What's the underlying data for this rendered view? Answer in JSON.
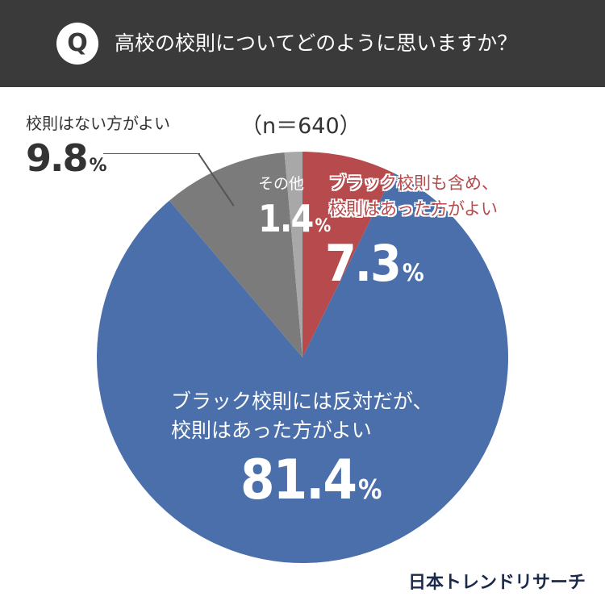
{
  "header": {
    "badge": "Q",
    "title": "高校の校則についてどのように思いますか？"
  },
  "sample_size": "（n＝640）",
  "chart_data": {
    "type": "pie",
    "title": "高校の校則についてどのように思いますか？",
    "slices": [
      {
        "label_line1": "ブラック校則も含め、",
        "label_line2": "校則はあった方がよい",
        "value": 7.3,
        "value_label": "7.3",
        "color": "#b64a4c"
      },
      {
        "label_line1": "ブラック校則には反対だが、",
        "label_line2": "校則はあった方がよい",
        "value": 81.4,
        "value_label": "81.4",
        "color": "#4a6fab"
      },
      {
        "label_line1": "校則はない方がよい",
        "label_line2": "",
        "value": 9.8,
        "value_label": "9.8",
        "color": "#7b7b7b"
      },
      {
        "label_line1": "その他",
        "label_line2": "",
        "value": 1.4,
        "value_label": "1.4",
        "color": "#a8a8a8"
      }
    ],
    "unit": "%"
  },
  "brand": "日本トレンドリサーチ"
}
